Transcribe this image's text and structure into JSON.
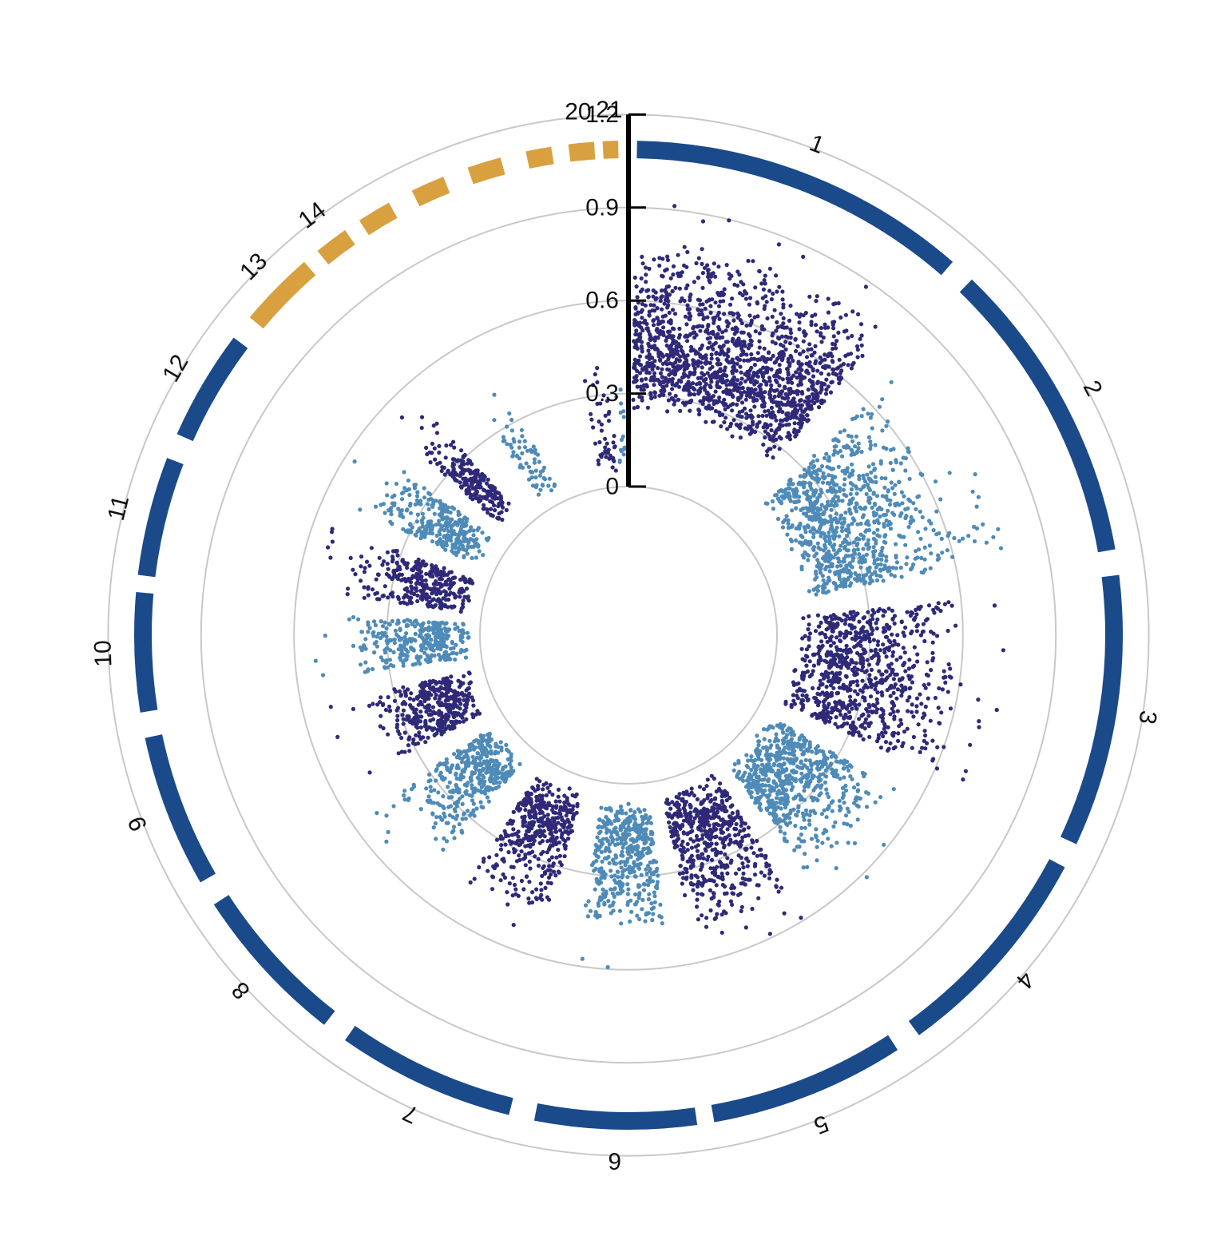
{
  "chart_data": {
    "type": "scatter",
    "subtype": "circular-manhattan",
    "title": "",
    "radial_axis": {
      "ticks": [
        0,
        0.3,
        0.6,
        0.9,
        1.2
      ],
      "tick_labels": [
        "0",
        "0.3",
        "0.6",
        "0.9",
        "1.2"
      ],
      "range": [
        0,
        1.2
      ]
    },
    "grid": true,
    "colors": {
      "dark_points": "#2e2a78",
      "light_points": "#4f8bb8",
      "ideogram_main": "#1a4a8a",
      "ideogram_small": "#d9a040",
      "grid": "#c8c8c8"
    },
    "chromosomes": [
      {
        "label": "1",
        "start_deg": 1,
        "end_deg": 41,
        "group": "main"
      },
      {
        "label": "2",
        "start_deg": 44,
        "end_deg": 80,
        "group": "main"
      },
      {
        "label": "3",
        "start_deg": 83,
        "end_deg": 115,
        "group": "main"
      },
      {
        "label": "4",
        "start_deg": 118,
        "end_deg": 144,
        "group": "main"
      },
      {
        "label": "5",
        "start_deg": 147,
        "end_deg": 170,
        "group": "main"
      },
      {
        "label": "6",
        "start_deg": 172,
        "end_deg": 191,
        "group": "main"
      },
      {
        "label": "7",
        "start_deg": 194,
        "end_deg": 215,
        "group": "main"
      },
      {
        "label": "8",
        "start_deg": 218,
        "end_deg": 237,
        "group": "main"
      },
      {
        "label": "9",
        "start_deg": 240,
        "end_deg": 258,
        "group": "main"
      },
      {
        "label": "10",
        "start_deg": 261,
        "end_deg": 275,
        "group": "main"
      },
      {
        "label": "11",
        "start_deg": 277,
        "end_deg": 291,
        "group": "main"
      },
      {
        "label": "12",
        "start_deg": 294,
        "end_deg": 307,
        "group": "main"
      },
      {
        "label": "13",
        "start_deg": 310,
        "end_deg": 319,
        "group": "small"
      },
      {
        "label": "14",
        "start_deg": 321,
        "end_deg": 325,
        "group": "small"
      },
      {
        "label": "",
        "start_deg": 327,
        "end_deg": 331,
        "group": "small"
      },
      {
        "label": "",
        "start_deg": 334,
        "end_deg": 338,
        "group": "small"
      },
      {
        "label": "",
        "start_deg": 341,
        "end_deg": 345,
        "group": "small"
      },
      {
        "label": "",
        "start_deg": 348,
        "end_deg": 351,
        "group": "small"
      },
      {
        "label": "20",
        "start_deg": 353,
        "end_deg": 356,
        "group": "small"
      },
      {
        "label": "21",
        "start_deg": 357,
        "end_deg": 358.8,
        "group": "small"
      }
    ],
    "point_clusters": [
      {
        "label": "1",
        "color": "dark",
        "start_deg": 1,
        "end_deg": 40,
        "count": 1500,
        "min": 0.24,
        "mode": 0.4,
        "max": 0.82
      },
      {
        "label": "2",
        "color": "light",
        "start_deg": 46,
        "end_deg": 78,
        "count": 900,
        "min": 0.1,
        "mode": 0.25,
        "max": 0.65
      },
      {
        "label": "3",
        "color": "dark",
        "start_deg": 84,
        "end_deg": 114,
        "count": 800,
        "min": 0.06,
        "mode": 0.2,
        "max": 0.62
      },
      {
        "label": "4",
        "color": "light",
        "start_deg": 120,
        "end_deg": 143,
        "count": 650,
        "min": 0.04,
        "mode": 0.15,
        "max": 0.5
      },
      {
        "label": "5",
        "color": "dark",
        "start_deg": 148,
        "end_deg": 168,
        "count": 550,
        "min": 0.04,
        "mode": 0.14,
        "max": 0.52
      },
      {
        "label": "6",
        "color": "light",
        "start_deg": 173,
        "end_deg": 189,
        "count": 450,
        "min": 0.05,
        "mode": 0.16,
        "max": 0.5
      },
      {
        "label": "7",
        "color": "dark",
        "start_deg": 196,
        "end_deg": 213,
        "count": 420,
        "min": 0.05,
        "mode": 0.14,
        "max": 0.48
      },
      {
        "label": "8",
        "color": "light",
        "start_deg": 220,
        "end_deg": 236,
        "count": 420,
        "min": 0.04,
        "mode": 0.14,
        "max": 0.44
      },
      {
        "label": "9",
        "color": "dark",
        "start_deg": 242,
        "end_deg": 257,
        "count": 380,
        "min": 0.04,
        "mode": 0.13,
        "max": 0.4
      },
      {
        "label": "10",
        "color": "light",
        "start_deg": 262,
        "end_deg": 274,
        "count": 320,
        "min": 0.03,
        "mode": 0.14,
        "max": 0.42
      },
      {
        "label": "11",
        "color": "dark",
        "start_deg": 278,
        "end_deg": 290,
        "count": 320,
        "min": 0.03,
        "mode": 0.15,
        "max": 0.45
      },
      {
        "label": "12",
        "color": "light",
        "start_deg": 295,
        "end_deg": 306,
        "count": 300,
        "min": 0.05,
        "mode": 0.17,
        "max": 0.45
      },
      {
        "label": "",
        "color": "dark",
        "start_deg": 311,
        "end_deg": 318,
        "count": 220,
        "min": 0.06,
        "mode": 0.2,
        "max": 0.44
      },
      {
        "label": "",
        "color": "light",
        "start_deg": 327,
        "end_deg": 334,
        "count": 70,
        "min": 0.02,
        "mode": 0.1,
        "max": 0.38
      },
      {
        "label": "",
        "color": "dark",
        "start_deg": 350,
        "end_deg": 356,
        "count": 45,
        "min": 0.02,
        "mode": 0.1,
        "max": 0.45
      },
      {
        "label": "",
        "color": "light",
        "start_deg": 357,
        "end_deg": 359,
        "count": 15,
        "min": 0.02,
        "mode": 0.1,
        "max": 0.4
      }
    ]
  }
}
